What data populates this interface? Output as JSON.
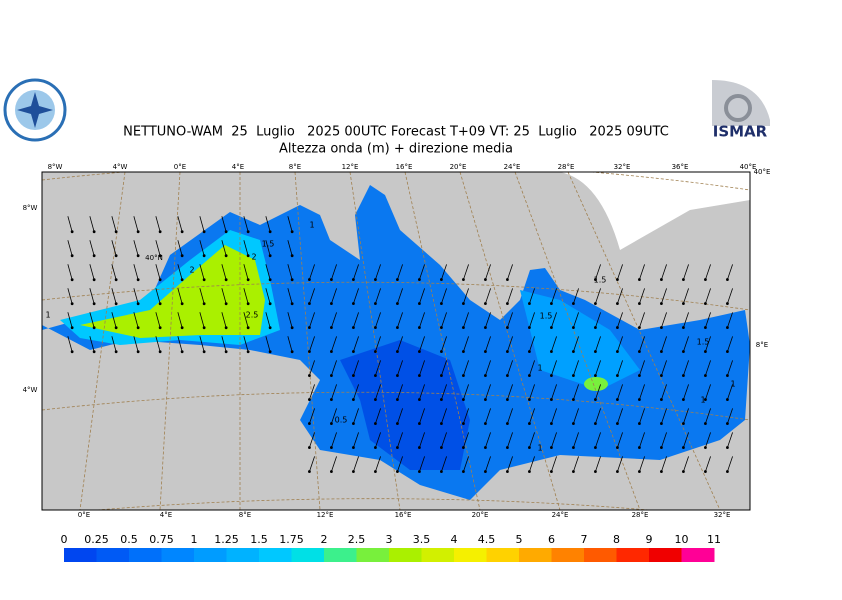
{
  "header": {
    "title": "NETTUNO-WAM  25  Luglio   2025 00UTC Forecast T+09 VT: 25  Luglio   2025 09UTC",
    "subtitle": "Altezza onda (m) + direzione media",
    "logo_text": "ISMAR"
  },
  "map": {
    "top_labels": [
      "8°W",
      "4°W",
      "0°E",
      "4°E",
      "8°E",
      "12°E",
      "16°E",
      "20°E",
      "24°E",
      "28°E",
      "32°E",
      "36°E",
      "40°E"
    ],
    "bottom_labels": [
      "0°E",
      "4°E",
      "8°E",
      "12°E",
      "16°E",
      "20°E",
      "24°E",
      "28°E",
      "32°E"
    ],
    "left_labels": [
      "8°W",
      "40°N",
      "4°W"
    ],
    "right_labels": [
      "40°E",
      "8°E"
    ],
    "contour_labels": [
      "2",
      "2.5",
      "2",
      "1.5",
      "1",
      "1",
      "1.5",
      "1",
      "0.5",
      "1.5",
      "1",
      "1",
      "1.5",
      "1"
    ]
  },
  "colorbar": {
    "labels": [
      "0",
      "0.25",
      "0.5",
      "0.75",
      "1",
      "1.25",
      "1.5",
      "1.75",
      "2",
      "2.5",
      "3",
      "3.5",
      "4",
      "4.5",
      "5",
      "6",
      "7",
      "8",
      "9",
      "10",
      "11"
    ],
    "colors": [
      "#0046f0",
      "#005af5",
      "#0070fa",
      "#0086ff",
      "#009cff",
      "#00b2ff",
      "#00c8ff",
      "#00e0e6",
      "#3cf08c",
      "#78f03c",
      "#aaf000",
      "#d2f000",
      "#f5f000",
      "#ffd200",
      "#ffaa00",
      "#ff8200",
      "#ff5a00",
      "#ff2800",
      "#f00000",
      "#ff0096"
    ]
  }
}
